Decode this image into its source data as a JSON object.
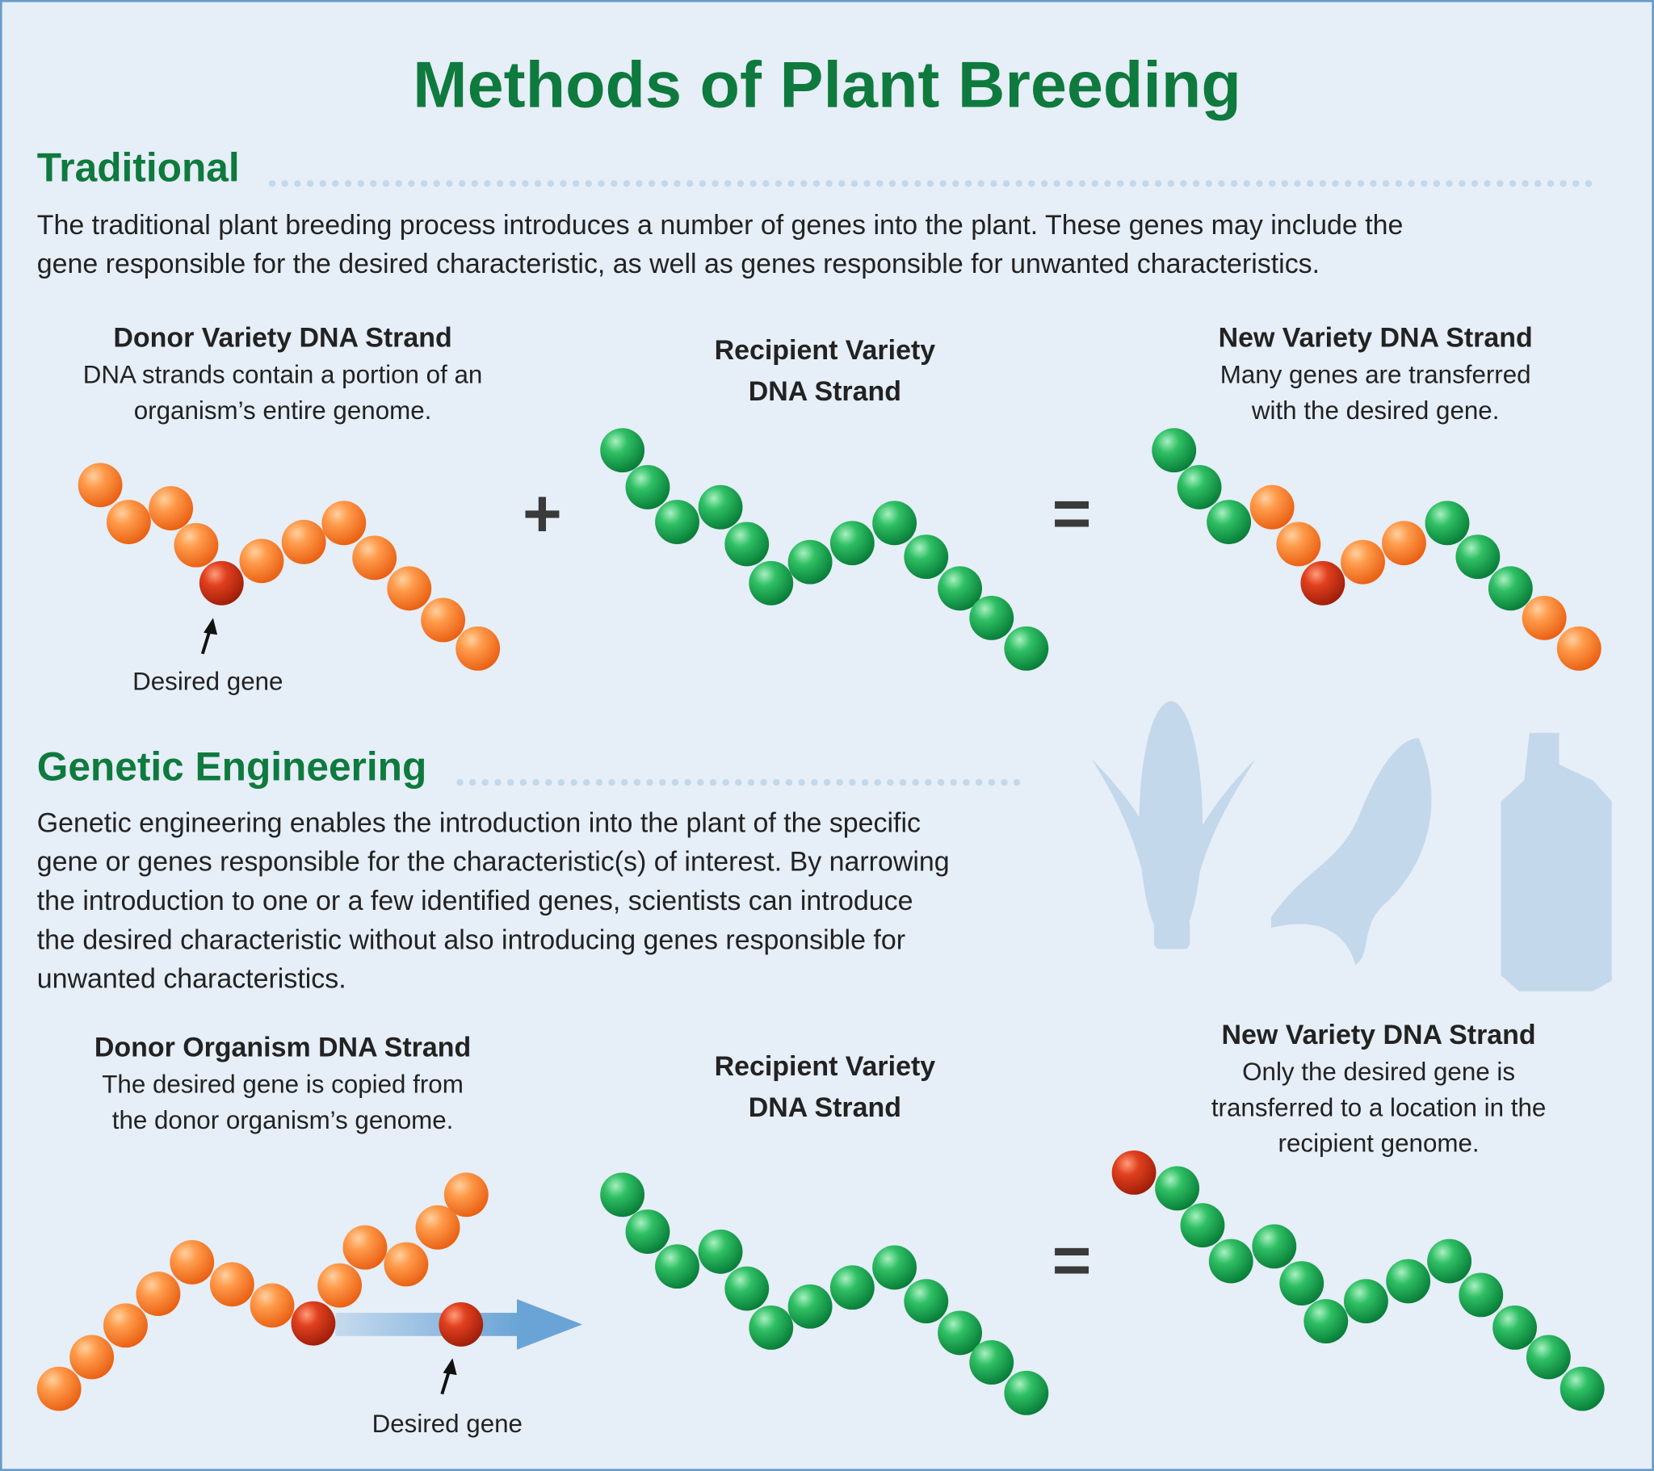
{
  "title": "Methods of Plant Breeding",
  "sections": [
    {
      "heading": "Traditional",
      "body": [
        "The traditional plant breeding process introduces a number of genes into the plant. These genes may include the",
        "gene responsible for the desired characteristic, as well as genes responsible for unwanted characteristics."
      ],
      "panels": [
        {
          "title": [
            "Donor Variety DNA Strand"
          ],
          "description": [
            "DNA strands contain a portion of an",
            "organism’s entire genome."
          ],
          "label": "Desired gene"
        },
        {
          "title": [
            "Recipient Variety",
            "DNA Strand"
          ]
        },
        {
          "title": [
            "New Variety DNA Strand"
          ],
          "description": [
            "Many genes are transferred",
            "with the desired gene."
          ]
        }
      ],
      "operators": [
        "+",
        "="
      ]
    },
    {
      "heading": "Genetic Engineering",
      "body": [
        "Genetic engineering enables the introduction into the plant of the specific",
        "gene or genes responsible for the characteristic(s) of interest. By narrowing",
        "the introduction to one or a few identified genes, scientists can introduce",
        "the desired characteristic without also introducing genes responsible for",
        "unwanted characteristics."
      ],
      "panels": [
        {
          "title": [
            "Donor Organism DNA Strand"
          ],
          "description": [
            "The desired gene is copied from",
            "the donor organism’s genome."
          ],
          "label": "Desired gene"
        },
        {
          "title": [
            "Recipient Variety",
            "DNA Strand"
          ]
        },
        {
          "title": [
            "New Variety DNA Strand"
          ],
          "description": [
            "Only the desired gene is",
            "transferred to a location in the",
            "recipient genome."
          ]
        }
      ],
      "operators": [
        "="
      ]
    }
  ]
}
